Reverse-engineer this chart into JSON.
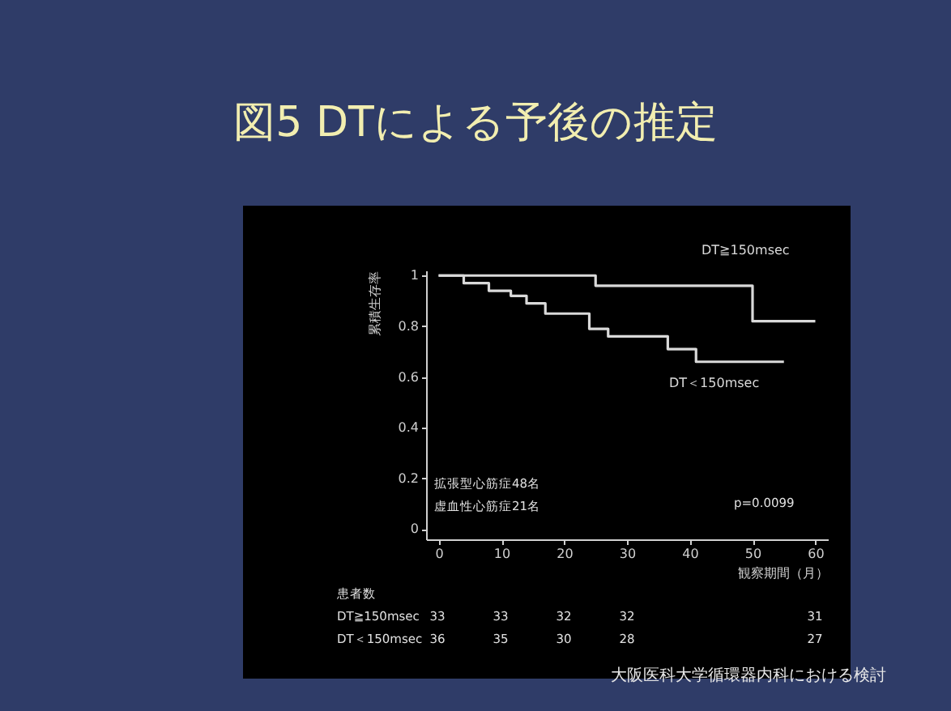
{
  "chart_data": {
    "type": "step",
    "title": "図5 DTによる予後の推定",
    "xlabel": "観察期間（月）",
    "ylabel": "累積生存率",
    "xlim": [
      -2,
      62
    ],
    "xticks": [
      0,
      10,
      20,
      30,
      40,
      50,
      60
    ],
    "ylim": [
      -0.04,
      1.02
    ],
    "yticks": [
      {
        "value": 0,
        "label": "0"
      },
      0.2,
      0.4,
      0.6,
      0.8,
      1
    ],
    "grid": false,
    "legend": false,
    "series": [
      {
        "name": "DT≧150msec",
        "color": "#d9d9d9",
        "x": [
          0,
          25,
          50,
          60
        ],
        "values": [
          1,
          0.96,
          0.82,
          0.82
        ]
      },
      {
        "name": "DT＜150msec",
        "color": "#d9d9d9",
        "x": [
          0,
          4,
          8,
          11.5,
          14,
          17,
          24,
          27,
          36.5,
          41,
          55
        ],
        "values": [
          1,
          0.97,
          0.94,
          0.92,
          0.89,
          0.85,
          0.79,
          0.76,
          0.71,
          0.66,
          0.66
        ]
      }
    ],
    "annotations": [
      "拡張型心筋症48名",
      "虚血性心筋症21名",
      "p=0.0099",
      "患者数",
      "DT≧150msec",
      "33",
      "33",
      "32",
      "32",
      "31",
      "DT＜150msec",
      "36",
      "35",
      "30",
      "28",
      "27",
      "大阪医科大学循環器内科における検討"
    ]
  }
}
